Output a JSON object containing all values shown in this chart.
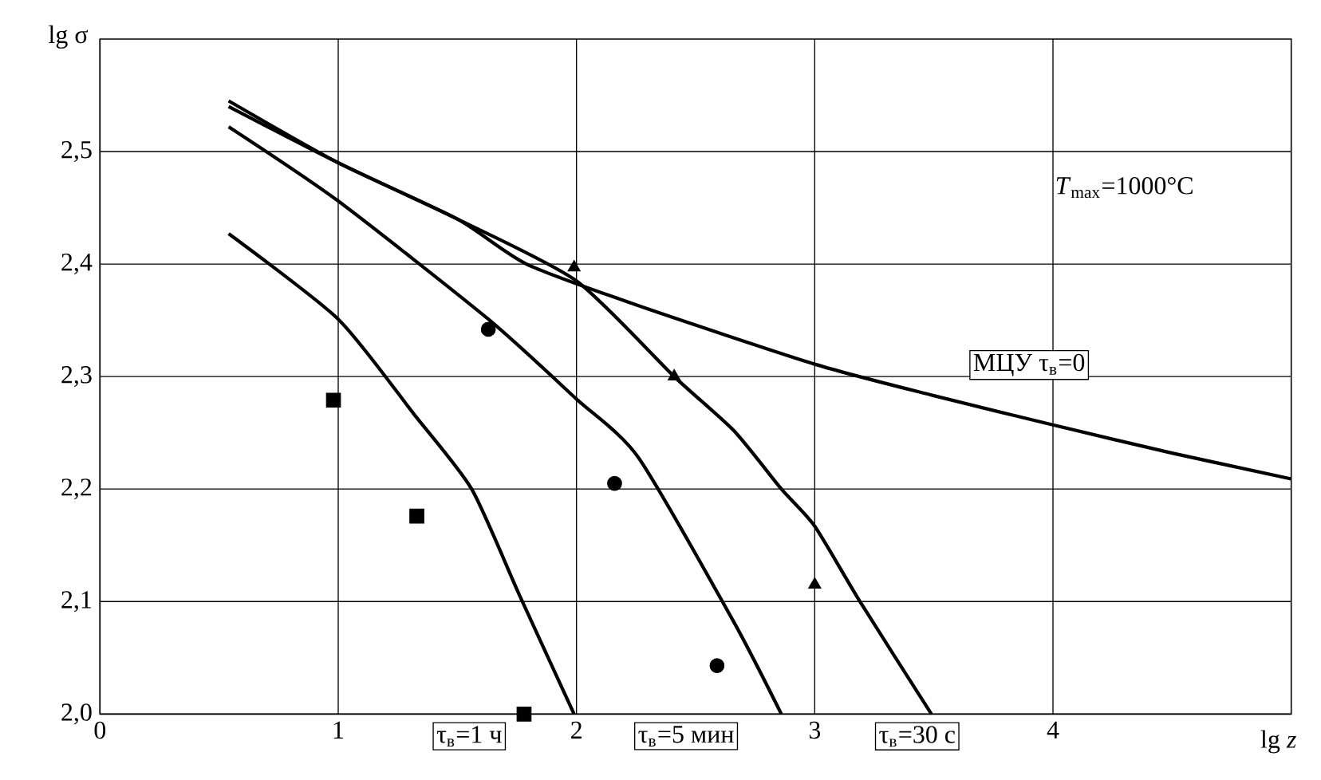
{
  "chart_data": {
    "type": "line",
    "xlabel": "lg *z*",
    "ylabel": "lg σ",
    "xlim": [
      0,
      5
    ],
    "ylim": [
      2.0,
      2.6
    ],
    "xticks": [
      0,
      1,
      2,
      3,
      4
    ],
    "yticks": [
      {
        "value": 2.0,
        "label": "2,0"
      },
      {
        "value": 2.1,
        "label": "2,1"
      },
      {
        "value": 2.2,
        "label": "2,2"
      },
      {
        "value": 2.3,
        "label": "2,3"
      },
      {
        "value": 2.4,
        "label": "2,4"
      },
      {
        "value": 2.5,
        "label": "2,5"
      }
    ],
    "grid": true,
    "series": [
      {
        "color": "#000000",
        "marker": "none",
        "x": [
          0.54,
          1.0,
          1.5,
          1.79,
          2.26,
          3.0,
          3.5,
          4.0,
          4.5,
          5.0
        ],
        "values": [
          2.545,
          2.49,
          2.44,
          2.4,
          2.363,
          2.311,
          2.283,
          2.257,
          2.232,
          2.209
        ]
      },
      {
        "color": "#000000",
        "marker": "none",
        "x": [
          0.54,
          1.0,
          1.5,
          2.0,
          2.41,
          2.66,
          2.86,
          3.0,
          3.19,
          3.49
        ],
        "values": [
          2.54,
          2.49,
          2.44,
          2.385,
          2.3,
          2.252,
          2.2,
          2.167,
          2.1,
          2.0
        ]
      },
      {
        "color": "#000000",
        "marker": "none",
        "x": [
          0.54,
          1.0,
          1.63,
          2.0,
          2.26,
          2.66,
          2.86
        ],
        "values": [
          2.522,
          2.456,
          2.351,
          2.28,
          2.228,
          2.082,
          2.0
        ]
      },
      {
        "color": "#000000",
        "marker": "none",
        "x": [
          0.54,
          1.0,
          1.32,
          1.56,
          1.76,
          1.99
        ],
        "values": [
          2.427,
          2.351,
          2.266,
          2.2,
          2.106,
          2.0
        ]
      },
      {
        "type": "scatter",
        "color": "#000000",
        "marker": "square",
        "x": [
          0.98,
          1.33,
          1.78
        ],
        "values": [
          2.279,
          2.176,
          2.0
        ]
      },
      {
        "type": "scatter",
        "color": "#000000",
        "marker": "circle",
        "x": [
          1.63,
          2.16,
          2.59
        ],
        "values": [
          2.342,
          2.205,
          2.043
        ]
      },
      {
        "type": "scatter",
        "color": "#000000",
        "marker": "triangle",
        "x": [
          1.99,
          2.41,
          3.0
        ],
        "values": [
          2.397,
          2.3,
          2.115
        ]
      }
    ],
    "annotations": [
      "*T*$_{max}$=1000°C",
      "МЦУ τ$_{в}$=0",
      "τ$_{в}$=1 ч",
      "τ$_{в}$=5 мин",
      "τ$_{в}$=30 с"
    ]
  }
}
